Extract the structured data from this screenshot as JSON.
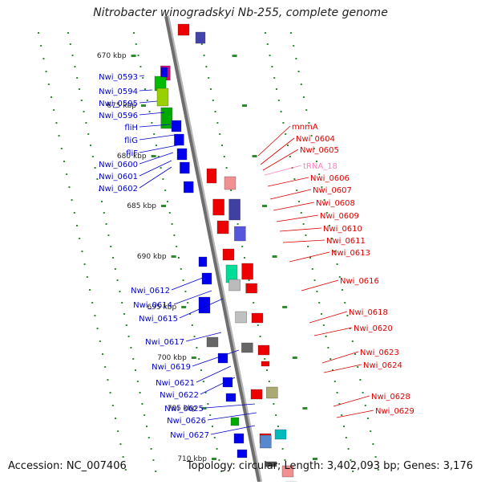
{
  "title": "Nitrobacter winogradskyi Nb-255, complete genome",
  "footer": {
    "accession": "Accession: NC_007406",
    "summary": "Topology: circular; Length: 3,402,093 bp; Genes: 3,176"
  },
  "colors": {
    "backbone": "#8c8c8c",
    "tick": "#2e8b2e",
    "left_label": "#0000cc",
    "right_label": "#dd0000",
    "rna_label": "#ff7fbf"
  },
  "scale_labels": [
    "670 kbp",
    "675 kbp",
    "680 kbp",
    "685 kbp",
    "690 kbp",
    "695 kbp",
    "700 kbp",
    "705 kbp",
    "710 kbp"
  ],
  "left_genes": [
    "Nwi_0593",
    "Nwi_0594",
    "Nwi_0595",
    "Nwi_0596",
    "fliH",
    "fliG",
    "fliF",
    "Nwi_0600",
    "Nwi_0601",
    "Nwi_0602",
    "Nwi_0612",
    "Nwi_0614",
    "Nwi_0615",
    "Nwi_0617",
    "Nwi_0619",
    "Nwi_0621",
    "Nwi_0622",
    "Nwi_0625",
    "Nwi_0626",
    "Nwi_0627"
  ],
  "right_genes": [
    "mnmA",
    "Nwi_0604",
    "Nwi_0605",
    "tRNA_18",
    "Nwi_0606",
    "Nwi_0607",
    "Nwi_0608",
    "Nwi_0609",
    "Nwi_0610",
    "Nwi_0611",
    "Nwi_0613",
    "Nwi_0616",
    "Nwi_0618",
    "Nwi_0620",
    "Nwi_0623",
    "Nwi_0624",
    "Nwi_0628",
    "Nwi_0629"
  ]
}
